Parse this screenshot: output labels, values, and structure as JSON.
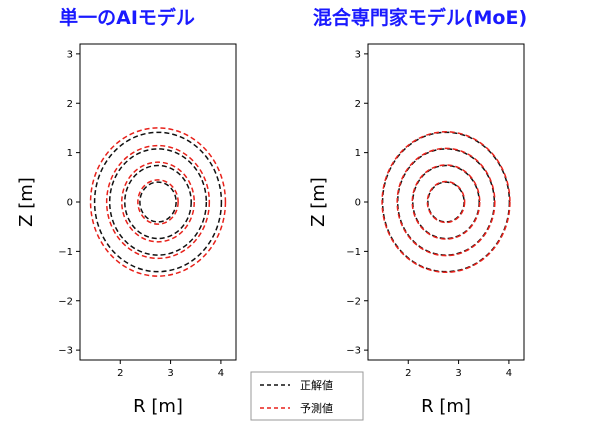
{
  "chart_data": [
    {
      "type": "line",
      "title": "単一のAIモデル",
      "xlabel": "R [m]",
      "ylabel": "Z [m]",
      "xlim": [
        1.2,
        4.3
      ],
      "ylim": [
        -3.2,
        3.2
      ],
      "xticks": [
        2,
        3,
        4
      ],
      "yticks": [
        -3,
        -2,
        -1,
        0,
        1,
        2,
        3
      ],
      "grid": false,
      "center": [
        2.75,
        0
      ],
      "series": [
        {
          "name": "正解値",
          "radii": [
            0.36,
            0.66,
            0.96,
            1.26
          ]
        },
        {
          "name": "予測値",
          "radii": [
            0.4,
            0.72,
            1.02,
            1.34
          ]
        }
      ]
    },
    {
      "type": "line",
      "title": "混合専門家モデル(MoE)",
      "xlabel": "R [m]",
      "ylabel": "Z [m]",
      "xlim": [
        1.2,
        4.3
      ],
      "ylim": [
        -3.2,
        3.2
      ],
      "xticks": [
        2,
        3,
        4
      ],
      "yticks": [
        -3,
        -2,
        -1,
        0,
        1,
        2,
        3
      ],
      "grid": false,
      "center": [
        2.75,
        0
      ],
      "series": [
        {
          "name": "正解値",
          "radii": [
            0.36,
            0.66,
            0.96,
            1.26
          ]
        },
        {
          "name": "予測値",
          "radii": [
            0.37,
            0.67,
            0.97,
            1.27
          ]
        }
      ]
    }
  ],
  "legend": {
    "entries": [
      {
        "label": "正解値",
        "color": "#111111"
      },
      {
        "label": "予測値",
        "color": "#e8211a"
      }
    ],
    "placement": "bottom-center"
  },
  "colors": {
    "title": "#1a1aff",
    "truth": "#111111",
    "prediction": "#e8211a"
  }
}
